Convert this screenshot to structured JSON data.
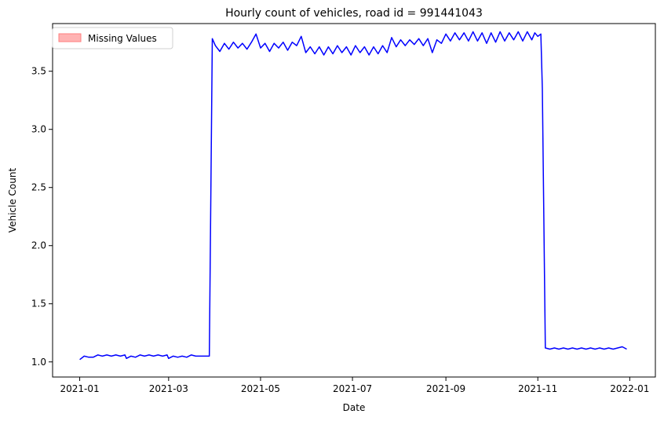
{
  "chart_data": {
    "type": "line",
    "title": "Hourly count of vehicles, road id = 991441043",
    "xlabel": "Date",
    "ylabel": "Vehicle Count",
    "xlim": [
      "2020-12-14",
      "2022-01-18"
    ],
    "ylim": [
      0.87,
      3.91
    ],
    "x_ticks": [
      "2021-01",
      "2021-03",
      "2021-05",
      "2021-07",
      "2021-09",
      "2021-11",
      "2022-01"
    ],
    "y_ticks": [
      "1.0",
      "1.5",
      "2.0",
      "2.5",
      "3.0",
      "3.5"
    ],
    "y_tick_values": [
      1.0,
      1.5,
      2.0,
      2.5,
      3.0,
      3.5
    ],
    "grid": false,
    "legend": {
      "position": "top-left",
      "entries": [
        "Missing Values"
      ]
    },
    "colors": {
      "line": "#0000ff",
      "missing_fill": "#ffb3b3",
      "missing_edge": "#ff7f7f"
    },
    "series": [
      {
        "values_x": [
          "2021-01-01",
          "2021-01-04",
          "2021-01-07",
          "2021-01-10",
          "2021-01-13",
          "2021-01-16",
          "2021-01-19",
          "2021-01-22",
          "2021-01-25",
          "2021-01-28",
          "2021-01-31",
          "2021-02-01",
          "2021-02-04",
          "2021-02-07",
          "2021-02-10",
          "2021-02-13",
          "2021-02-16",
          "2021-02-19",
          "2021-02-22",
          "2021-02-25",
          "2021-02-28",
          "2021-03-01",
          "2021-03-04",
          "2021-03-07",
          "2021-03-10",
          "2021-03-13",
          "2021-03-16",
          "2021-03-19",
          "2021-03-22",
          "2021-03-25",
          "2021-03-28",
          "2021-03-30",
          "2021-04-01",
          "2021-04-04",
          "2021-04-07",
          "2021-04-10",
          "2021-04-13",
          "2021-04-16",
          "2021-04-19",
          "2021-04-22",
          "2021-04-25",
          "2021-04-28",
          "2021-05-01",
          "2021-05-04",
          "2021-05-07",
          "2021-05-10",
          "2021-05-13",
          "2021-05-16",
          "2021-05-19",
          "2021-05-22",
          "2021-05-25",
          "2021-05-28",
          "2021-05-31",
          "2021-06-03",
          "2021-06-06",
          "2021-06-09",
          "2021-06-12",
          "2021-06-15",
          "2021-06-18",
          "2021-06-21",
          "2021-06-24",
          "2021-06-27",
          "2021-06-30",
          "2021-07-03",
          "2021-07-06",
          "2021-07-09",
          "2021-07-12",
          "2021-07-15",
          "2021-07-18",
          "2021-07-21",
          "2021-07-24",
          "2021-07-27",
          "2021-07-30",
          "2021-08-02",
          "2021-08-05",
          "2021-08-08",
          "2021-08-11",
          "2021-08-14",
          "2021-08-17",
          "2021-08-20",
          "2021-08-23",
          "2021-08-26",
          "2021-08-29",
          "2021-09-01",
          "2021-09-04",
          "2021-09-07",
          "2021-09-10",
          "2021-09-13",
          "2021-09-16",
          "2021-09-19",
          "2021-09-22",
          "2021-09-25",
          "2021-09-28",
          "2021-10-01",
          "2021-10-04",
          "2021-10-07",
          "2021-10-10",
          "2021-10-13",
          "2021-10-16",
          "2021-10-19",
          "2021-10-22",
          "2021-10-25",
          "2021-10-28",
          "2021-10-30",
          "2021-11-01",
          "2021-11-03",
          "2021-11-04",
          "2021-11-06",
          "2021-11-09",
          "2021-11-12",
          "2021-11-15",
          "2021-11-18",
          "2021-11-21",
          "2021-11-24",
          "2021-11-27",
          "2021-11-30",
          "2021-12-03",
          "2021-12-06",
          "2021-12-09",
          "2021-12-12",
          "2021-12-15",
          "2021-12-18",
          "2021-12-21",
          "2021-12-24",
          "2021-12-27",
          "2021-12-30"
        ],
        "values": [
          1.02,
          1.05,
          1.04,
          1.04,
          1.06,
          1.05,
          1.06,
          1.05,
          1.06,
          1.05,
          1.06,
          1.03,
          1.05,
          1.04,
          1.06,
          1.05,
          1.06,
          1.05,
          1.06,
          1.05,
          1.06,
          1.03,
          1.05,
          1.04,
          1.05,
          1.04,
          1.06,
          1.05,
          1.05,
          1.05,
          1.05,
          3.78,
          3.72,
          3.67,
          3.74,
          3.69,
          3.75,
          3.7,
          3.74,
          3.69,
          3.75,
          3.82,
          3.7,
          3.74,
          3.67,
          3.74,
          3.7,
          3.75,
          3.68,
          3.75,
          3.72,
          3.8,
          3.66,
          3.71,
          3.65,
          3.71,
          3.64,
          3.71,
          3.65,
          3.72,
          3.66,
          3.71,
          3.64,
          3.72,
          3.66,
          3.71,
          3.64,
          3.71,
          3.65,
          3.72,
          3.66,
          3.79,
          3.71,
          3.77,
          3.72,
          3.77,
          3.73,
          3.78,
          3.72,
          3.78,
          3.66,
          3.77,
          3.74,
          3.82,
          3.76,
          3.83,
          3.77,
          3.83,
          3.76,
          3.84,
          3.76,
          3.83,
          3.74,
          3.83,
          3.75,
          3.84,
          3.76,
          3.83,
          3.77,
          3.84,
          3.76,
          3.84,
          3.77,
          3.83,
          3.8,
          3.82,
          3.35,
          1.12,
          1.11,
          1.12,
          1.11,
          1.12,
          1.11,
          1.12,
          1.11,
          1.12,
          1.11,
          1.12,
          1.11,
          1.12,
          1.11,
          1.12,
          1.11,
          1.12,
          1.13,
          1.11
        ]
      }
    ]
  }
}
